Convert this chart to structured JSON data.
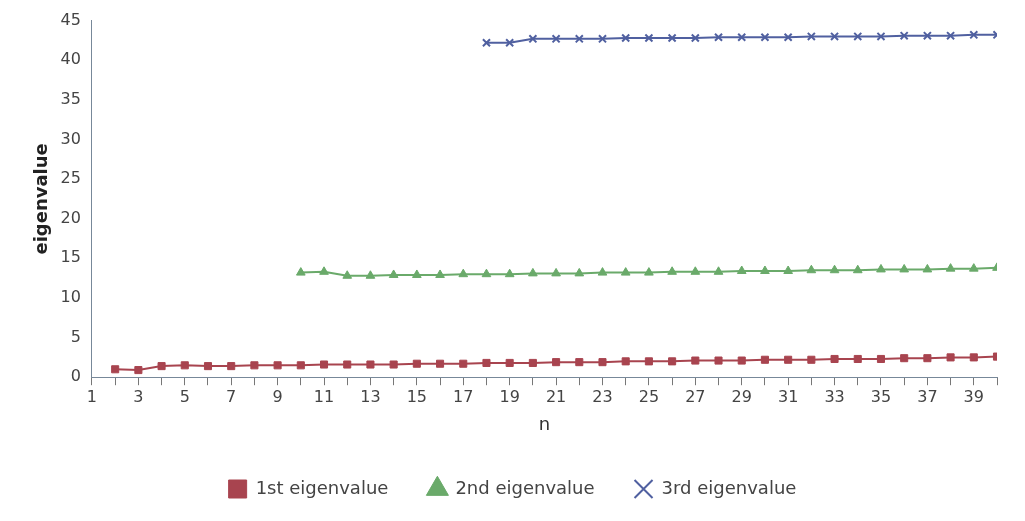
{
  "chart_data": {
    "type": "line",
    "xlabel": "n",
    "ylabel": "eigenvalue",
    "x": [
      2,
      3,
      4,
      5,
      6,
      7,
      8,
      9,
      10,
      11,
      12,
      13,
      14,
      15,
      16,
      17,
      18,
      19,
      20,
      21,
      22,
      23,
      24,
      25,
      26,
      27,
      28,
      29,
      30,
      31,
      32,
      33,
      34,
      35,
      36,
      37,
      38,
      39,
      40
    ],
    "xlim": [
      1,
      40
    ],
    "xticks": [
      1,
      {
        "value": 2,
        "label": null
      },
      3,
      {
        "value": 4,
        "label": null
      },
      5,
      {
        "value": 6,
        "label": null
      },
      7,
      {
        "value": 8,
        "label": null
      },
      9,
      {
        "value": 10,
        "label": null
      },
      11,
      {
        "value": 12,
        "label": null
      },
      13,
      {
        "value": 14,
        "label": null
      },
      15,
      {
        "value": 16,
        "label": null
      },
      17,
      {
        "value": 18,
        "label": null
      },
      19,
      {
        "value": 20,
        "label": null
      },
      21,
      {
        "value": 22,
        "label": null
      },
      23,
      {
        "value": 24,
        "label": null
      },
      25,
      {
        "value": 26,
        "label": null
      },
      27,
      {
        "value": 28,
        "label": null
      },
      29,
      {
        "value": 30,
        "label": null
      },
      31,
      {
        "value": 32,
        "label": null
      },
      33,
      {
        "value": 34,
        "label": null
      },
      35,
      {
        "value": 36,
        "label": null
      },
      37,
      {
        "value": 38,
        "label": null
      },
      39,
      {
        "value": 40,
        "label": null
      }
    ],
    "series": [
      {
        "name": "1st eigenvalue",
        "color": "#a8444f",
        "marker": "square",
        "values": [
          1.0,
          0.9,
          1.4,
          1.5,
          1.4,
          1.4,
          1.5,
          1.5,
          1.5,
          1.6,
          1.6,
          1.6,
          1.6,
          1.7,
          1.7,
          1.7,
          1.8,
          1.8,
          1.8,
          1.9,
          1.9,
          1.9,
          2.0,
          2.0,
          2.0,
          2.1,
          2.1,
          2.1,
          2.2,
          2.2,
          2.2,
          2.3,
          2.3,
          2.3,
          2.4,
          2.4,
          2.5,
          2.5,
          2.6
        ]
      },
      {
        "name": "2nd eigenvalue",
        "color": "#6aaa6a",
        "marker": "triangle",
        "values": [
          null,
          null,
          null,
          null,
          null,
          null,
          null,
          null,
          13.2,
          13.3,
          12.8,
          12.8,
          12.9,
          12.9,
          12.9,
          13.0,
          13.0,
          13.0,
          13.1,
          13.1,
          13.1,
          13.2,
          13.2,
          13.2,
          13.3,
          13.3,
          13.3,
          13.4,
          13.4,
          13.4,
          13.5,
          13.5,
          13.5,
          13.6,
          13.6,
          13.6,
          13.7,
          13.7,
          13.8
        ]
      },
      {
        "name": "3rd eigenvalue",
        "color": "#5060a0",
        "marker": "cross",
        "values": [
          null,
          null,
          null,
          null,
          null,
          null,
          null,
          null,
          null,
          null,
          null,
          null,
          null,
          null,
          null,
          null,
          42.2,
          42.2,
          42.7,
          42.7,
          42.7,
          42.7,
          42.8,
          42.8,
          42.8,
          42.8,
          42.9,
          42.9,
          42.9,
          42.9,
          43.0,
          43.0,
          43.0,
          43.0,
          43.1,
          43.1,
          43.1,
          43.2,
          43.2
        ]
      }
    ],
    "ylim": [
      0,
      45
    ],
    "yticks": [
      0,
      5,
      10,
      15,
      20,
      25,
      30,
      35,
      40,
      45
    ],
    "grid": false,
    "legend": "bottom",
    "line_style": "solid"
  }
}
